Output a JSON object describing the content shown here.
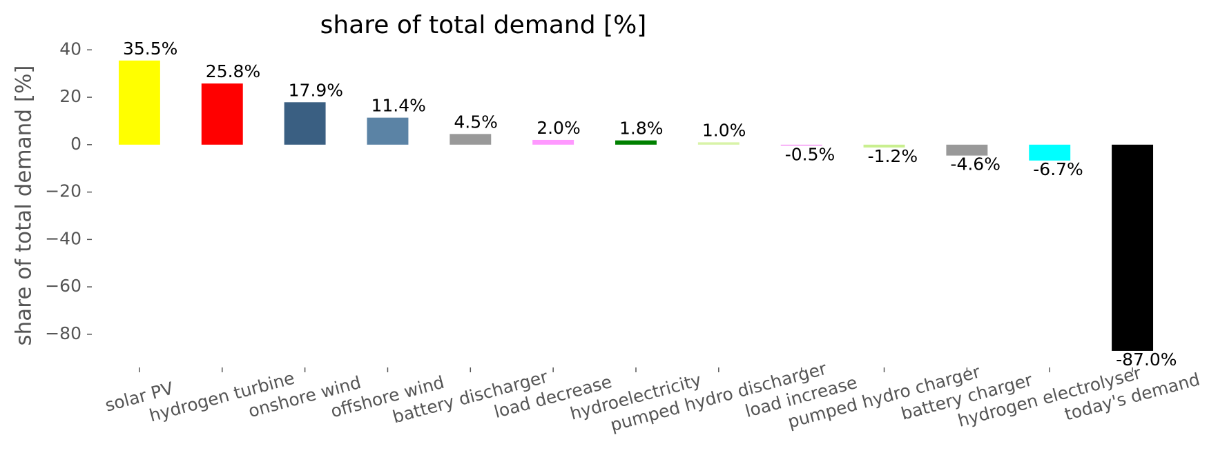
{
  "chart_data": {
    "type": "bar",
    "title": "share of total demand [%]",
    "y_label": "share of total demand [%]",
    "categories": [
      "solar PV",
      "hydrogen turbine",
      "onshore wind",
      "offshore wind",
      "battery discharger",
      "load decrease",
      "hydroelectricity",
      "pumped hydro discharger",
      "load increase",
      "pumped hydro charger",
      "battery charger",
      "hydrogen electrolyser",
      "today's demand"
    ],
    "values": [
      35.5,
      25.8,
      17.9,
      11.4,
      4.5,
      2.0,
      1.8,
      1.0,
      -0.5,
      -1.2,
      -4.6,
      -6.7,
      -87.0
    ],
    "value_labels": [
      "35.5%",
      "25.8%",
      "17.9%",
      "11.4%",
      "4.5%",
      "2.0%",
      "1.8%",
      "1.0%",
      "-0.5%",
      "-1.2%",
      "-4.6%",
      "-6.7%",
      "-87.0%"
    ],
    "colors": [
      "#ffff00",
      "#ff0000",
      "#3a5f82",
      "#5b83a5",
      "#999999",
      "#ff99ff",
      "#008000",
      "#d8f3a8",
      "#f5a0f5",
      "#c9ef8f",
      "#999999",
      "#00ffff",
      "#000000"
    ],
    "ylim": [
      -94,
      43
    ],
    "yticks": [
      40,
      20,
      0,
      {
        "value": -20,
        "label": "−20"
      },
      {
        "value": -40,
        "label": "−40"
      },
      {
        "value": -60,
        "label": "−60"
      },
      {
        "value": -80,
        "label": "−80"
      }
    ],
    "grid": false
  }
}
